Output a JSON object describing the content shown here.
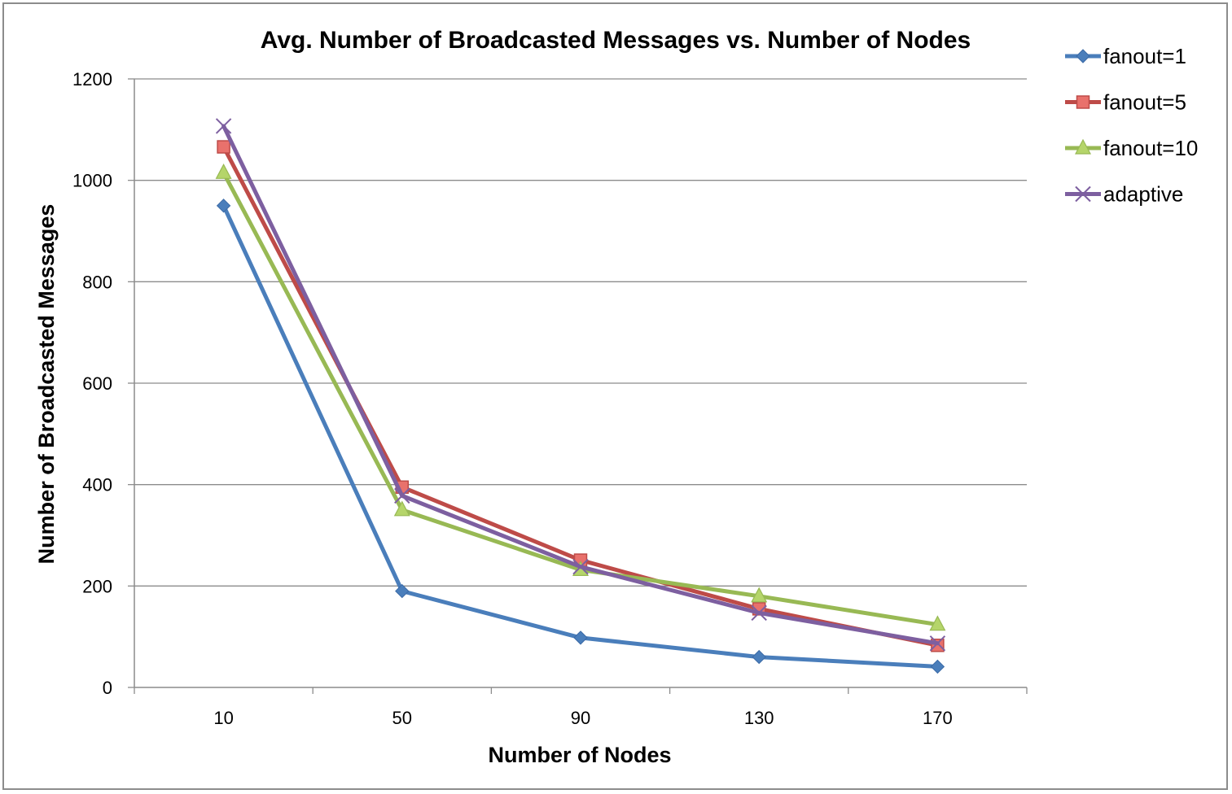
{
  "chart_data": {
    "type": "line",
    "title": "Avg. Number of Broadcasted Messages vs. Number of Nodes",
    "xlabel": "Number of Nodes",
    "ylabel": "Number of Broadcasted Messages",
    "categories": [
      "10",
      "50",
      "90",
      "130",
      "170"
    ],
    "ylim": [
      0,
      1200
    ],
    "yticks": [
      "0",
      "200",
      "400",
      "600",
      "800",
      "1000",
      "1200"
    ],
    "grid": true,
    "legend_position": "right",
    "series": [
      {
        "name": "fanout=1",
        "color": "#4a7ebb",
        "marker": "diamond",
        "values": [
          950,
          190,
          98,
          60,
          41
        ]
      },
      {
        "name": "fanout=5",
        "color": "#be4b48",
        "marker": "square",
        "values": [
          1066,
          395,
          251,
          155,
          83
        ]
      },
      {
        "name": "fanout=10",
        "color": "#98b954",
        "marker": "triangle",
        "values": [
          1015,
          350,
          232,
          180,
          124
        ]
      },
      {
        "name": "adaptive",
        "color": "#7d5fa0",
        "marker": "x",
        "values": [
          1107,
          378,
          238,
          147,
          87
        ]
      }
    ]
  }
}
